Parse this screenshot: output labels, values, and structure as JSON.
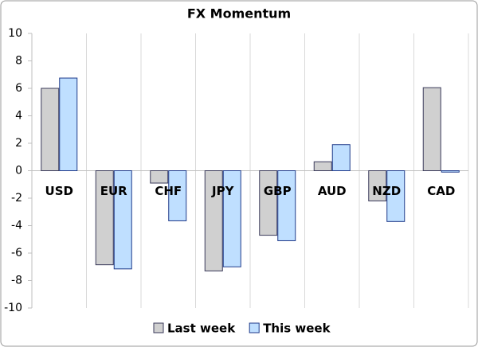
{
  "chart_data": {
    "type": "bar",
    "title": "FX Momentum",
    "categories": [
      "USD",
      "EUR",
      "CHF",
      "JPY",
      "GBP",
      "AUD",
      "NZD",
      "CAD"
    ],
    "series": [
      {
        "name": "Last week",
        "color": "#d0d0d0",
        "stroke": "#3a3a5a",
        "values": [
          6.0,
          -6.85,
          -0.9,
          -7.3,
          -4.7,
          0.65,
          -2.2,
          6.05
        ]
      },
      {
        "name": "This week",
        "color": "#bfdfff",
        "stroke": "#1f3a8a",
        "values": [
          6.75,
          -7.15,
          -3.65,
          -7.0,
          -5.1,
          1.9,
          -3.7,
          -0.1
        ]
      }
    ],
    "ylim": [
      -10,
      10
    ],
    "yticks": [
      -10,
      -8,
      -6,
      -4,
      -2,
      0,
      2,
      4,
      6,
      8,
      10
    ],
    "grid": true,
    "legend": "bottom"
  }
}
